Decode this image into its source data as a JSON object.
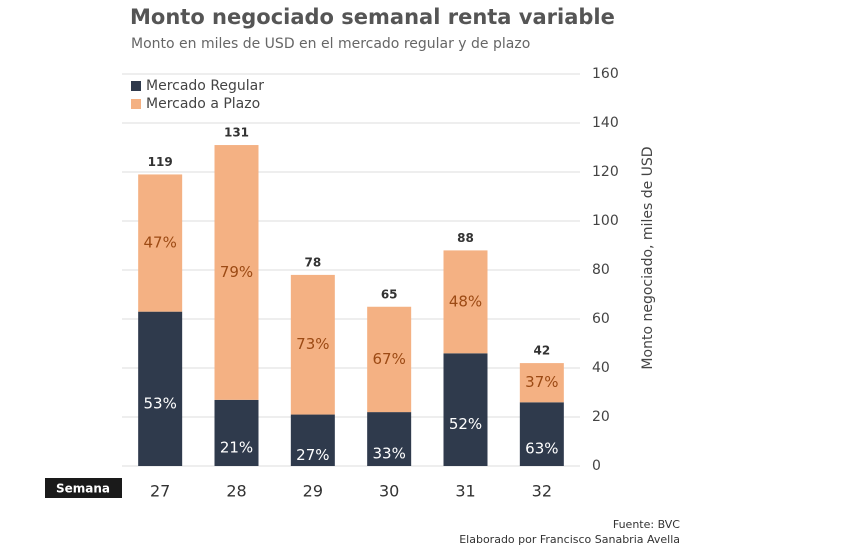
{
  "chart_data": {
    "type": "stacked_bar",
    "title": "Monto negociado semanal renta variable",
    "subtitle": "Monto en miles de USD en el mercado regular y de plazo",
    "y_axis_label": "Monto negociado, miles de USD",
    "x_axis_label": "Semana",
    "source": "Fuente: BVC",
    "credit": "Elaborado por Francisco Sanabria Avella",
    "categories": [
      "27",
      "28",
      "29",
      "30",
      "31",
      "32"
    ],
    "series": [
      {
        "name": "Mercado Regular",
        "color": "#2f3a4c",
        "label_color": "#ffffff",
        "values": [
          63,
          27,
          21,
          22,
          46,
          26
        ],
        "share_labels": [
          "53%",
          "21%",
          "27%",
          "33%",
          "52%",
          "63%"
        ]
      },
      {
        "name": "Mercado a Plazo",
        "color": "#f4b183",
        "label_color": "#9c4a14",
        "values": [
          56,
          104,
          57,
          43,
          42,
          16
        ],
        "share_labels": [
          "47%",
          "79%",
          "73%",
          "67%",
          "48%",
          "37%"
        ]
      }
    ],
    "totals": [
      119,
      131,
      78,
      65,
      88,
      42
    ],
    "ylim": [
      0,
      160
    ],
    "yticks": [
      0,
      20,
      40,
      60,
      80,
      100,
      120,
      140,
      160
    ],
    "grid": true,
    "legend": "top-left"
  }
}
